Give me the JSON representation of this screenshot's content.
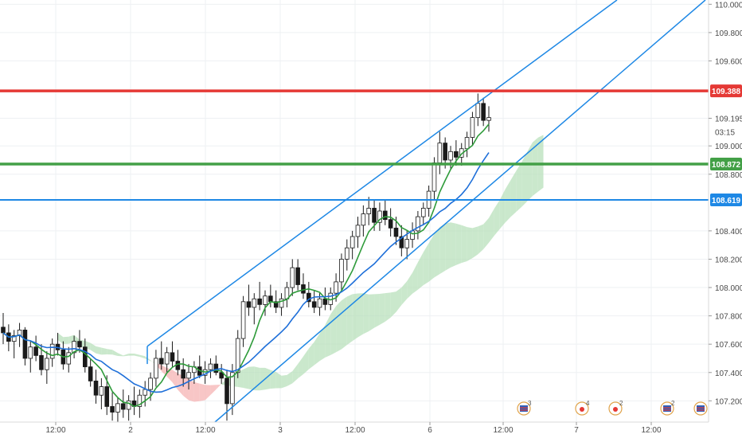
{
  "chart_data": {
    "type": "candlestick",
    "y_axis": {
      "ylim": [
        107.05,
        110.03
      ],
      "ticks": [
        "110.000",
        "109.800",
        "109.600",
        "109.195",
        "109.000",
        "108.800",
        "108.400",
        "108.200",
        "108.000",
        "107.800",
        "107.600",
        "107.400",
        "107.200"
      ],
      "countdown": "03:15"
    },
    "x_axis": {
      "ticks": [
        "12:00",
        "2",
        "12:00",
        "3",
        "12:00",
        "6",
        "12:00",
        "7",
        "12:00"
      ]
    },
    "price_lines": [
      {
        "value": 109.388,
        "label": "109.388",
        "color": "#e53935"
      },
      {
        "value": 108.872,
        "label": "108.872",
        "color": "#43a047"
      },
      {
        "value": 108.619,
        "label": "108.619",
        "color": "#1e88e5"
      }
    ],
    "channel_color": "#1e88e5",
    "candles": [
      [
        107.72,
        107.82,
        107.6,
        107.68
      ],
      [
        107.68,
        107.74,
        107.55,
        107.62
      ],
      [
        107.62,
        107.7,
        107.5,
        107.66
      ],
      [
        107.66,
        107.75,
        107.58,
        107.7
      ],
      [
        107.7,
        107.72,
        107.45,
        107.5
      ],
      [
        107.5,
        107.62,
        107.4,
        107.58
      ],
      [
        107.58,
        107.66,
        107.48,
        107.52
      ],
      [
        107.52,
        107.6,
        107.38,
        107.42
      ],
      [
        107.42,
        107.55,
        107.32,
        107.5
      ],
      [
        107.5,
        107.64,
        107.44,
        107.6
      ],
      [
        107.6,
        107.68,
        107.52,
        107.56
      ],
      [
        107.56,
        107.62,
        107.42,
        107.46
      ],
      [
        107.46,
        107.58,
        107.4,
        107.54
      ],
      [
        107.54,
        107.66,
        107.5,
        107.62
      ],
      [
        107.62,
        107.7,
        107.54,
        107.58
      ],
      [
        107.58,
        107.64,
        107.4,
        107.44
      ],
      [
        107.44,
        107.5,
        107.3,
        107.34
      ],
      [
        107.34,
        107.42,
        107.18,
        107.24
      ],
      [
        107.24,
        107.36,
        107.14,
        107.3
      ],
      [
        107.3,
        107.38,
        107.1,
        107.16
      ],
      [
        107.16,
        107.26,
        107.06,
        107.12
      ],
      [
        107.12,
        107.22,
        107.05,
        107.18
      ],
      [
        107.18,
        107.28,
        107.08,
        107.14
      ],
      [
        107.14,
        107.24,
        107.06,
        107.2
      ],
      [
        107.2,
        107.3,
        107.1,
        107.16
      ],
      [
        107.16,
        107.28,
        107.08,
        107.24
      ],
      [
        107.24,
        107.34,
        107.16,
        107.28
      ],
      [
        107.28,
        107.4,
        107.2,
        107.36
      ],
      [
        107.36,
        107.56,
        107.3,
        107.5
      ],
      [
        107.5,
        107.62,
        107.42,
        107.46
      ],
      [
        107.46,
        107.58,
        107.4,
        107.54
      ],
      [
        107.54,
        107.62,
        107.44,
        107.48
      ],
      [
        107.48,
        107.56,
        107.38,
        107.42
      ],
      [
        107.42,
        107.5,
        107.3,
        107.36
      ],
      [
        107.36,
        107.46,
        107.28,
        107.4
      ],
      [
        107.4,
        107.48,
        107.32,
        107.44
      ],
      [
        107.44,
        107.52,
        107.36,
        107.38
      ],
      [
        107.38,
        107.48,
        107.32,
        107.42
      ],
      [
        107.42,
        107.5,
        107.36,
        107.46
      ],
      [
        107.46,
        107.52,
        107.38,
        107.4
      ],
      [
        107.4,
        107.46,
        107.32,
        107.36
      ],
      [
        107.36,
        107.42,
        107.06,
        107.18
      ],
      [
        107.18,
        107.46,
        107.1,
        107.4
      ],
      [
        107.4,
        107.7,
        107.36,
        107.64
      ],
      [
        107.64,
        107.94,
        107.58,
        107.9
      ],
      [
        107.9,
        108.02,
        107.8,
        107.86
      ],
      [
        107.86,
        107.96,
        107.74,
        107.92
      ],
      [
        107.92,
        108.04,
        107.84,
        107.88
      ],
      [
        107.88,
        107.98,
        107.8,
        107.94
      ],
      [
        107.94,
        108.02,
        107.86,
        107.9
      ],
      [
        107.9,
        107.98,
        107.82,
        107.86
      ],
      [
        107.86,
        107.96,
        107.8,
        107.92
      ],
      [
        107.92,
        108.04,
        107.86,
        108.0
      ],
      [
        108.0,
        108.2,
        107.94,
        108.14
      ],
      [
        108.14,
        108.2,
        107.98,
        108.02
      ],
      [
        108.02,
        108.1,
        107.92,
        107.96
      ],
      [
        107.96,
        108.04,
        107.86,
        107.9
      ],
      [
        107.9,
        107.98,
        107.82,
        107.86
      ],
      [
        107.86,
        107.96,
        107.8,
        107.92
      ],
      [
        107.92,
        108.0,
        107.84,
        107.88
      ],
      [
        107.88,
        108.0,
        107.84,
        107.96
      ],
      [
        107.96,
        108.1,
        107.9,
        108.04
      ],
      [
        108.04,
        108.24,
        107.98,
        108.2
      ],
      [
        108.2,
        108.34,
        108.12,
        108.28
      ],
      [
        108.28,
        108.4,
        108.2,
        108.36
      ],
      [
        108.36,
        108.5,
        108.28,
        108.44
      ],
      [
        108.44,
        108.58,
        108.36,
        108.52
      ],
      [
        108.52,
        108.64,
        108.44,
        108.56
      ],
      [
        108.56,
        108.62,
        108.4,
        108.46
      ],
      [
        108.46,
        108.6,
        108.4,
        108.54
      ],
      [
        108.54,
        108.62,
        108.44,
        108.48
      ],
      [
        108.48,
        108.56,
        108.36,
        108.42
      ],
      [
        108.42,
        108.5,
        108.3,
        108.36
      ],
      [
        108.36,
        108.44,
        108.22,
        108.28
      ],
      [
        108.28,
        108.4,
        108.2,
        108.34
      ],
      [
        108.34,
        108.46,
        108.28,
        108.4
      ],
      [
        108.4,
        108.54,
        108.34,
        108.5
      ],
      [
        108.5,
        108.6,
        108.44,
        108.56
      ],
      [
        108.56,
        108.72,
        108.5,
        108.68
      ],
      [
        108.68,
        108.92,
        108.62,
        108.88
      ],
      [
        108.88,
        109.1,
        108.8,
        109.02
      ],
      [
        109.02,
        109.06,
        108.84,
        108.9
      ],
      [
        108.9,
        109.0,
        108.84,
        108.96
      ],
      [
        108.96,
        109.04,
        108.86,
        108.92
      ],
      [
        108.92,
        109.02,
        108.86,
        108.98
      ],
      [
        108.98,
        109.1,
        108.92,
        109.06
      ],
      [
        109.06,
        109.24,
        109.0,
        109.2
      ],
      [
        109.2,
        109.37,
        109.14,
        109.3
      ],
      [
        109.3,
        109.34,
        109.14,
        109.18
      ],
      [
        109.18,
        109.28,
        109.1,
        109.2
      ]
    ],
    "indicators": [
      {
        "kind": "sma_fast",
        "color": "#2e9b3a",
        "period": 6
      },
      {
        "kind": "sma_slow",
        "color": "#1e6fd9",
        "period": 14
      },
      {
        "kind": "cloud_above",
        "color": "#f5b3b3"
      },
      {
        "kind": "cloud_below",
        "color": "#b8e0bb"
      }
    ],
    "event_markers": [
      {
        "icon": "flag-icon",
        "count": "3"
      },
      {
        "icon": "fire-icon",
        "count": "4"
      },
      {
        "icon": "fire-icon",
        "count": "2"
      },
      {
        "icon": "flag-icon",
        "count": "2"
      },
      {
        "icon": "flag-icon",
        "count": ""
      }
    ]
  }
}
